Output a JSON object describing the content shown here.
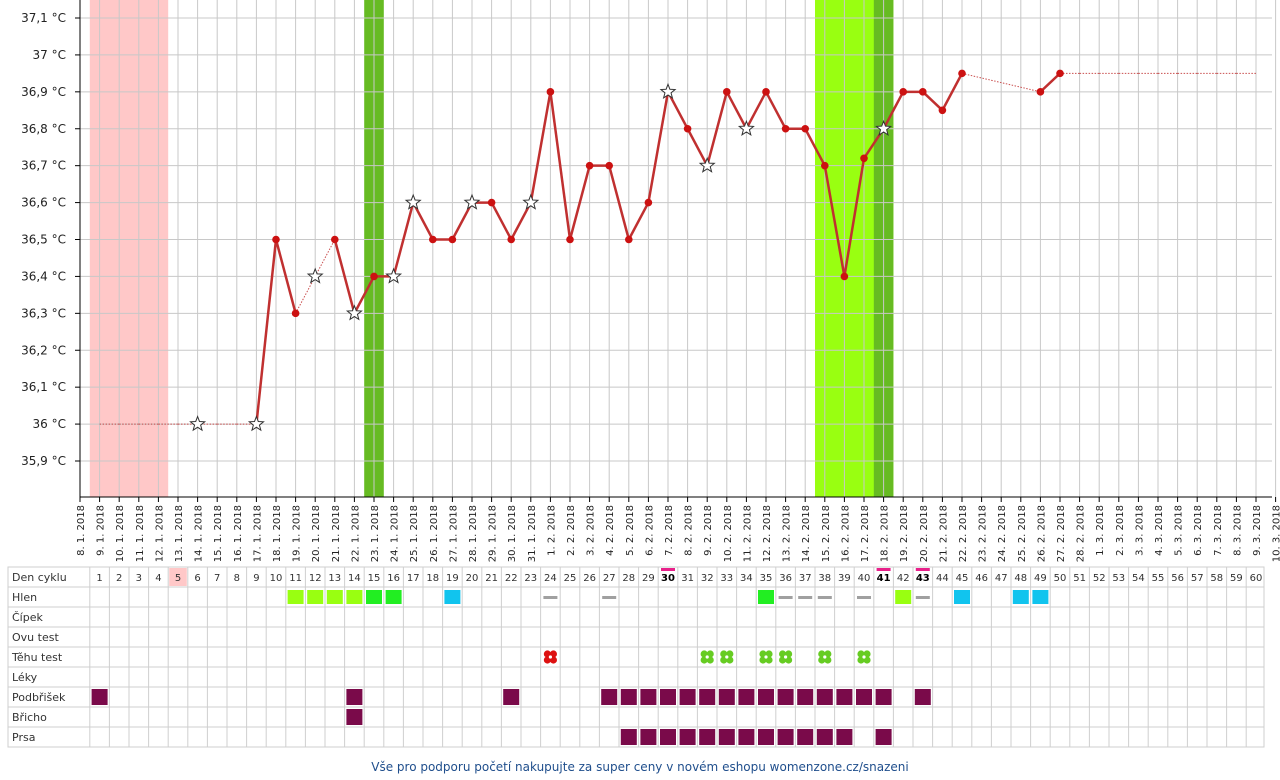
{
  "chart_data": {
    "type": "line",
    "ylim": [
      35.8,
      37.15
    ],
    "y_ticks": [
      35.9,
      36.0,
      36.1,
      36.2,
      36.3,
      36.4,
      36.5,
      36.6,
      36.7,
      36.8,
      36.9,
      37.0,
      37.1
    ],
    "y_tick_labels": [
      "35,9 °C",
      "36 °C",
      "36,1 °C",
      "36,2 °C",
      "36,3 °C",
      "36,4 °C",
      "36,5 °C",
      "36,6 °C",
      "36,7 °C",
      "36,8 °C",
      "36,9 °C",
      "37 °C",
      "37,1 °C"
    ],
    "x_labels": [
      "8. 1. 2018",
      "9. 1. 2018",
      "10. 1. 2018",
      "11. 1. 2018",
      "12. 1. 2018",
      "13. 1. 2018",
      "14. 1. 2018",
      "15. 1. 2018",
      "16. 1. 2018",
      "17. 1. 2018",
      "18. 1. 2018",
      "19. 1. 2018",
      "20. 1. 2018",
      "21. 1. 2018",
      "22. 1. 2018",
      "23. 1. 2018",
      "24. 1. 2018",
      "25. 1. 2018",
      "26. 1. 2018",
      "27. 1. 2018",
      "28. 1. 2018",
      "29. 1. 2018",
      "30. 1. 2018",
      "31. 1. 2018",
      "1. 2. 2018",
      "2. 2. 2018",
      "3. 2. 2018",
      "4. 2. 2018",
      "5. 2. 2018",
      "6. 2. 2018",
      "7. 2. 2018",
      "8. 2. 2018",
      "9. 2. 2018",
      "10. 2. 2018",
      "11. 2. 2018",
      "12. 2. 2018",
      "13. 2. 2018",
      "14. 2. 2018",
      "15. 2. 2018",
      "16. 2. 2018",
      "17. 2. 2018",
      "18. 2. 2018",
      "19. 2. 2018",
      "20. 2. 2018",
      "21. 2. 2018",
      "22. 2. 2018",
      "23. 2. 2018",
      "24. 2. 2018",
      "25. 2. 2018",
      "26. 2. 2018",
      "27. 2. 2018",
      "28. 2. 2018",
      "1. 3. 2018",
      "2. 3. 2018",
      "3. 3. 2018",
      "4. 3. 2018",
      "5. 3. 2018",
      "6. 3. 2018",
      "7. 3. 2018",
      "8. 3. 2018",
      "9. 3. 2018",
      "10. 3. 2018"
    ],
    "temperatures": [
      null,
      36.0,
      36.0,
      36.0,
      36.0,
      36.0,
      36.0,
      36.0,
      36.0,
      36.0,
      36.5,
      36.3,
      36.4,
      36.5,
      36.3,
      36.4,
      36.4,
      36.6,
      36.5,
      36.5,
      36.6,
      36.6,
      36.5,
      36.6,
      36.9,
      36.5,
      36.7,
      36.7,
      36.5,
      36.6,
      36.9,
      36.8,
      36.7,
      36.9,
      36.8,
      36.9,
      36.8,
      36.8,
      36.7,
      36.4,
      36.72,
      36.8,
      36.9,
      36.9,
      36.85,
      36.95,
      null,
      null,
      null,
      36.9,
      36.95,
      36.95,
      36.95,
      36.95,
      36.95,
      36.95,
      36.95,
      36.95,
      36.95,
      36.95,
      36.95,
      null
    ],
    "point_kind": [
      "",
      "x",
      "x",
      "x",
      "x",
      "x",
      "s",
      "x",
      "x",
      "s",
      "d",
      "d",
      "s",
      "d",
      "s",
      "d",
      "s",
      "s",
      "d",
      "d",
      "s",
      "d",
      "d",
      "s",
      "d",
      "d",
      "d",
      "d",
      "d",
      "d",
      "s",
      "d",
      "s",
      "d",
      "s",
      "d",
      "d",
      "d",
      "d",
      "d",
      "d",
      "s",
      "d",
      "d",
      "d",
      "d",
      "",
      "",
      "",
      "d",
      "d",
      "x",
      "x",
      "x",
      "x",
      "x",
      "x",
      "x",
      "x",
      "x",
      "x",
      ""
    ],
    "segment_style": [
      "",
      "dotted",
      "dotted",
      "dotted",
      "dotted",
      "dotted",
      "dotted",
      "dotted",
      "dotted",
      "solid",
      "solid",
      "dotted",
      "dotted",
      "solid",
      "solid",
      "solid",
      "solid",
      "solid",
      "solid",
      "solid",
      "solid",
      "solid",
      "solid",
      "solid",
      "solid",
      "solid",
      "solid",
      "solid",
      "solid",
      "solid",
      "solid",
      "solid",
      "solid",
      "solid",
      "solid",
      "solid",
      "solid",
      "solid",
      "solid",
      "solid",
      "solid",
      "solid",
      "solid",
      "solid",
      "solid",
      "dotted",
      "dotted",
      "dotted",
      "dotted",
      "solid",
      "dotted",
      "dotted",
      "dotted",
      "dotted",
      "dotted",
      "dotted",
      "dotted",
      "dotted",
      "dotted",
      "dotted",
      "",
      ""
    ],
    "pink_span": [
      1,
      4
    ],
    "green_bands": [
      {
        "from": 14.5,
        "to": 15.5,
        "color": "#66bb22"
      },
      {
        "from": 37.5,
        "to": 41.5,
        "color": "#99ff11"
      },
      {
        "from": 40.5,
        "to": 41.5,
        "color": "#66bb22"
      }
    ]
  },
  "table": {
    "rows": [
      "Den cyklu",
      "Hlen",
      "Čípek",
      "Ovu test",
      "Těhu test",
      "Léky",
      "Podbřišek",
      "Břicho",
      "Prsa"
    ],
    "days": [
      1,
      2,
      3,
      4,
      5,
      6,
      7,
      8,
      9,
      10,
      11,
      12,
      13,
      14,
      15,
      16,
      17,
      18,
      19,
      20,
      21,
      22,
      23,
      24,
      25,
      26,
      27,
      28,
      29,
      30,
      31,
      32,
      33,
      34,
      35,
      36,
      37,
      38,
      39,
      40,
      41,
      42,
      43,
      44,
      45,
      46,
      47,
      48,
      49,
      50,
      51,
      52,
      53,
      54,
      55,
      56,
      57,
      58,
      59,
      60
    ],
    "highlight_day_pink": [
      5
    ],
    "marked_days": [
      30,
      41,
      43
    ],
    "hlen": {
      "11": "lime",
      "12": "lime",
      "13": "lime",
      "14": "lime",
      "15": "green",
      "16": "green",
      "19": "blue",
      "24": "gray",
      "27": "gray",
      "35": "green",
      "36": "gray",
      "37": "gray",
      "38": "gray",
      "40": "gray",
      "42": "lime",
      "43": "gray",
      "45": "blue",
      "48": "blue",
      "49": "blue"
    },
    "tehu_test": {
      "24": "red-flower",
      "32": "green-clover",
      "33": "green-clover",
      "35": "green-clover",
      "36": "green-clover",
      "38": "green-clover",
      "40": "green-clover"
    },
    "podbrisek": [
      1,
      14,
      22,
      27,
      28,
      29,
      30,
      31,
      32,
      33,
      34,
      35,
      36,
      37,
      38,
      39,
      40,
      41,
      43
    ],
    "bricho": [
      14
    ],
    "prsa": [
      28,
      29,
      30,
      31,
      32,
      33,
      34,
      35,
      36,
      37,
      38,
      39,
      41
    ]
  },
  "colors": {
    "line": "#c03030",
    "dot": "#cc1111",
    "pink": "#ffc8c8",
    "lime": "#99ff11",
    "green": "#22ee22",
    "blue": "#11c4ee",
    "gray": "#a0a0a0",
    "maroon": "#7a0a4a",
    "mark": "#e8208a"
  },
  "footer": "Vše pro podporu početí nakupujte za super ceny v novém eshopu womenzone.cz/snazeni"
}
